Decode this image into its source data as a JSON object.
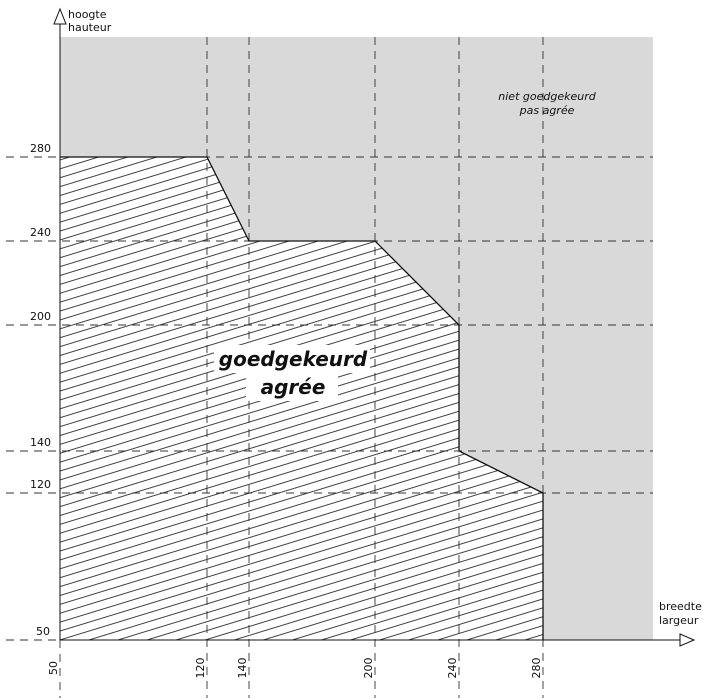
{
  "chart_data": {
    "type": "area",
    "xlabel": [
      "breedte",
      "largeur"
    ],
    "ylabel": [
      "hoogte",
      "hauteur"
    ],
    "x_ticks": [
      50,
      120,
      140,
      200,
      240,
      280
    ],
    "y_ticks": [
      50,
      120,
      140,
      200,
      240,
      280
    ],
    "regions": {
      "approved": {
        "label": [
          "goedgekeurd",
          "agrée"
        ],
        "boundary": [
          [
            50,
            50
          ],
          [
            50,
            280
          ],
          [
            120,
            280
          ],
          [
            140,
            240
          ],
          [
            200,
            240
          ],
          [
            240,
            200
          ],
          [
            240,
            140
          ],
          [
            280,
            120
          ],
          [
            280,
            50
          ]
        ]
      },
      "not_approved": {
        "label": [
          "niet goedgekeurd",
          "pas agrée"
        ]
      }
    },
    "grid": "dashed",
    "colors": {
      "not_approved_fill": "#d9d9d9",
      "approved_fill": "#ffffff",
      "hatch": "#111111",
      "grid": "#333333"
    }
  }
}
